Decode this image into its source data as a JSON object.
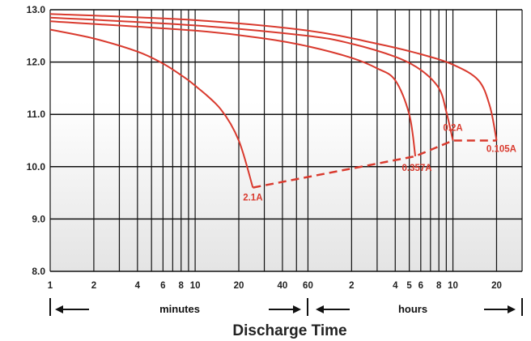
{
  "chart_data": {
    "type": "line",
    "title": "",
    "xlabel": "Discharge Time",
    "ylabel": "",
    "x_scale": "log",
    "y_lim": [
      8.0,
      13.0
    ],
    "y_ticks": [
      "8.0",
      "9.0",
      "10.0",
      "11.0",
      "12.0",
      "13.0"
    ],
    "x_tick_labels": [
      "1",
      "2",
      "4",
      "6",
      "8",
      "10",
      "20",
      "40",
      "60",
      "2",
      "4",
      "5",
      "6",
      "8",
      "10",
      "20"
    ],
    "x_groups": [
      {
        "label": "minutes"
      },
      {
        "label": "hours"
      }
    ],
    "grid": true,
    "series": [
      {
        "name": "2.1A",
        "start_voltage": 12.62,
        "cutoff_minutes": 25,
        "cutoff_voltage": 9.6,
        "points": [
          [
            1,
            12.62
          ],
          [
            2,
            12.45
          ],
          [
            4,
            12.2
          ],
          [
            6,
            11.97
          ],
          [
            8,
            11.75
          ],
          [
            10,
            11.55
          ],
          [
            15,
            11.1
          ],
          [
            20,
            10.5
          ],
          [
            25,
            9.6
          ]
        ]
      },
      {
        "name": "0.357A",
        "start_voltage": 12.78,
        "cutoff_minutes": 330,
        "cutoff_voltage": 10.2,
        "points": [
          [
            1,
            12.78
          ],
          [
            10,
            12.6
          ],
          [
            30,
            12.45
          ],
          [
            60,
            12.3
          ],
          [
            120,
            12.08
          ],
          [
            180,
            11.88
          ],
          [
            240,
            11.65
          ],
          [
            300,
            11.0
          ],
          [
            330,
            10.2
          ]
        ]
      },
      {
        "name": "0.2A",
        "start_voltage": 12.85,
        "cutoff_minutes": 600,
        "cutoff_voltage": 10.5,
        "points": [
          [
            1,
            12.85
          ],
          [
            10,
            12.7
          ],
          [
            60,
            12.5
          ],
          [
            120,
            12.35
          ],
          [
            240,
            12.1
          ],
          [
            360,
            11.85
          ],
          [
            480,
            11.5
          ],
          [
            540,
            11.05
          ],
          [
            600,
            10.5
          ]
        ]
      },
      {
        "name": "0.105A",
        "start_voltage": 12.92,
        "cutoff_minutes": 1200,
        "cutoff_voltage": 10.5,
        "points": [
          [
            1,
            12.92
          ],
          [
            10,
            12.8
          ],
          [
            60,
            12.6
          ],
          [
            180,
            12.35
          ],
          [
            360,
            12.15
          ],
          [
            600,
            11.95
          ],
          [
            900,
            11.65
          ],
          [
            1080,
            11.15
          ],
          [
            1200,
            10.5
          ]
        ]
      }
    ],
    "cutoff_line": [
      [
        25,
        9.6
      ],
      [
        330,
        10.2
      ],
      [
        600,
        10.5
      ],
      [
        1200,
        10.5
      ]
    ],
    "colors": {
      "curve": "#d93a2e",
      "grid": "#111111"
    }
  }
}
